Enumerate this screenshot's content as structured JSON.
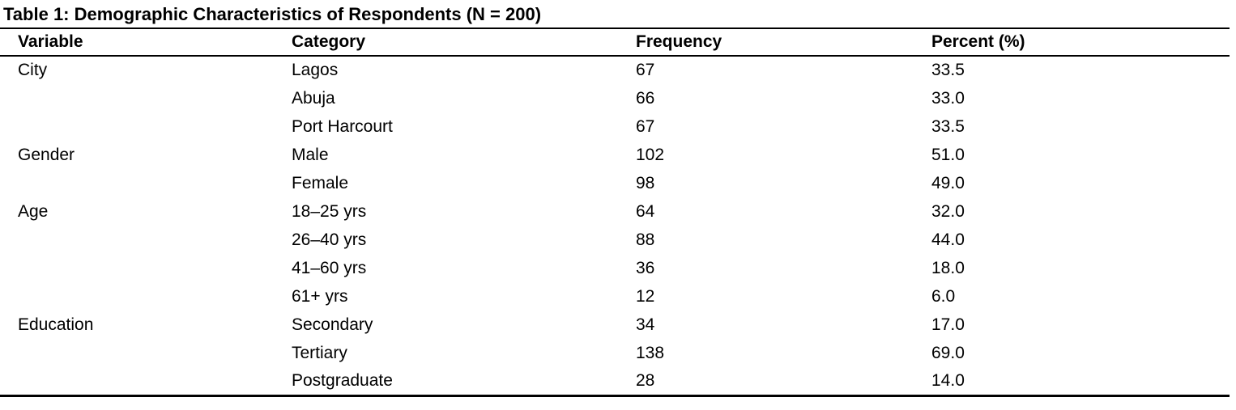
{
  "colors": {
    "text": "#000000",
    "background": "#ffffff",
    "border": "#000000"
  },
  "title": "Table 1: Demographic Characteristics of Respondents (N = 200)",
  "table": {
    "headers": [
      "Variable",
      "Category",
      "Frequency",
      "Percent (%)"
    ],
    "rows": [
      {
        "variable": "City",
        "category": "Lagos",
        "frequency": "67",
        "percent": "33.5"
      },
      {
        "variable": "",
        "category": "Abuja",
        "frequency": "66",
        "percent": "33.0"
      },
      {
        "variable": "",
        "category": "Port Harcourt",
        "frequency": "67",
        "percent": "33.5"
      },
      {
        "variable": "Gender",
        "category": "Male",
        "frequency": "102",
        "percent": "51.0"
      },
      {
        "variable": "",
        "category": "Female",
        "frequency": "98",
        "percent": "49.0"
      },
      {
        "variable": "Age",
        "category": "18–25 yrs",
        "frequency": "64",
        "percent": "32.0"
      },
      {
        "variable": "",
        "category": "26–40 yrs",
        "frequency": "88",
        "percent": "44.0"
      },
      {
        "variable": "",
        "category": "41–60 yrs",
        "frequency": "36",
        "percent": "18.0"
      },
      {
        "variable": "",
        "category": "61+ yrs",
        "frequency": "12",
        "percent": "6.0"
      },
      {
        "variable": "Education",
        "category": "Secondary",
        "frequency": "34",
        "percent": "17.0"
      },
      {
        "variable": "",
        "category": "Tertiary",
        "frequency": "138",
        "percent": "69.0"
      },
      {
        "variable": "",
        "category": "Postgraduate",
        "frequency": "28",
        "percent": "14.0"
      }
    ]
  }
}
